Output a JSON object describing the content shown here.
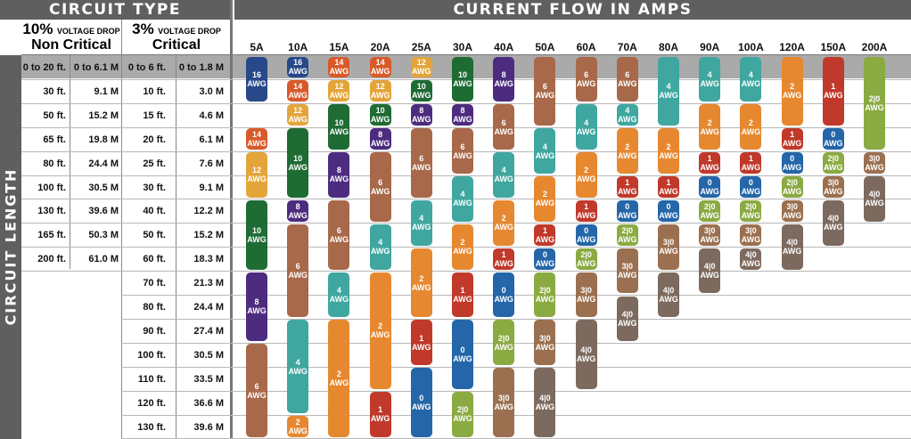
{
  "header": {
    "circuit_type": "CIRCUIT TYPE",
    "current_flow": "CURRENT FLOW IN AMPS",
    "circuit_length": "CIRCUIT LENGTH"
  },
  "drop_noncritical": {
    "percent": "10%",
    "caption": "VOLTAGE DROP",
    "label": "Non Critical"
  },
  "drop_critical": {
    "percent": "3%",
    "caption": "VOLTAGE DROP",
    "label": "Critical"
  },
  "amps": [
    "5A",
    "10A",
    "15A",
    "20A",
    "25A",
    "30A",
    "40A",
    "50A",
    "60A",
    "70A",
    "80A",
    "90A",
    "100A",
    "120A",
    "150A",
    "200A"
  ],
  "noncritical_rows": [
    {
      "ft": "0 to 20 ft.",
      "m": "0 to 6.1 M"
    },
    {
      "ft": "30 ft.",
      "m": "9.1 M"
    },
    {
      "ft": "50 ft.",
      "m": "15.2 M"
    },
    {
      "ft": "65 ft.",
      "m": "19.8 M"
    },
    {
      "ft": "80 ft.",
      "m": "24.4 M"
    },
    {
      "ft": "100 ft.",
      "m": "30.5 M"
    },
    {
      "ft": "130 ft.",
      "m": "39.6 M"
    },
    {
      "ft": "165 ft.",
      "m": "50.3 M"
    },
    {
      "ft": "200 ft.",
      "m": "61.0 M"
    }
  ],
  "critical_rows": [
    {
      "ft": "0 to 6 ft.",
      "m": "0 to 1.8 M"
    },
    {
      "ft": "10 ft.",
      "m": "3.0 M"
    },
    {
      "ft": "15 ft.",
      "m": "4.6 M"
    },
    {
      "ft": "20 ft.",
      "m": "6.1 M"
    },
    {
      "ft": "25 ft.",
      "m": "7.6 M"
    },
    {
      "ft": "30 ft.",
      "m": "9.1 M"
    },
    {
      "ft": "40 ft.",
      "m": "12.2 M"
    },
    {
      "ft": "50 ft.",
      "m": "15.2 M"
    },
    {
      "ft": "60 ft.",
      "m": "18.3 M"
    },
    {
      "ft": "70 ft.",
      "m": "21.3 M"
    },
    {
      "ft": "80 ft.",
      "m": "24.4 M"
    },
    {
      "ft": "90 ft.",
      "m": "27.4 M"
    },
    {
      "ft": "100 ft.",
      "m": "30.5 M"
    },
    {
      "ft": "110 ft.",
      "m": "33.5 M"
    },
    {
      "ft": "120 ft.",
      "m": "36.6 M"
    },
    {
      "ft": "130 ft.",
      "m": "39.6 M"
    }
  ],
  "awg_unit": "AWG",
  "gauge_colors": {
    "16": "#27498a",
    "14": "#d85a2a",
    "12": "#e3a53a",
    "10": "#1f6b34",
    "8": "#4d2c7f",
    "6": "#a8684a",
    "4": "#3fa7a0",
    "2": "#e68830",
    "1": "#c0392b",
    "0": "#2466a8",
    "2|0": "#8aaa42",
    "3|0": "#9a7050",
    "4|0": "#7c6a5e"
  },
  "wire_chart": [
    {
      "amps": "5A",
      "segments": [
        {
          "gauge": "16",
          "rows": [
            0,
            1
          ]
        },
        {
          "gauge": "14",
          "rows": [
            3,
            3
          ]
        },
        {
          "gauge": "12",
          "rows": [
            4,
            5
          ]
        },
        {
          "gauge": "10",
          "rows": [
            6,
            8
          ]
        },
        {
          "gauge": "8",
          "rows": [
            9,
            11
          ]
        },
        {
          "gauge": "6",
          "rows": [
            12,
            15
          ]
        }
      ]
    },
    {
      "amps": "10A",
      "segments": [
        {
          "gauge": "16",
          "rows": [
            0,
            0
          ]
        },
        {
          "gauge": "14",
          "rows": [
            1,
            1
          ]
        },
        {
          "gauge": "12",
          "rows": [
            2,
            2
          ]
        },
        {
          "gauge": "10",
          "rows": [
            3,
            5
          ]
        },
        {
          "gauge": "8",
          "rows": [
            6,
            6
          ]
        },
        {
          "gauge": "6",
          "rows": [
            7,
            10
          ]
        },
        {
          "gauge": "4",
          "rows": [
            11,
            14
          ]
        },
        {
          "gauge": "2",
          "rows": [
            15,
            15
          ]
        }
      ]
    },
    {
      "amps": "15A",
      "segments": [
        {
          "gauge": "14",
          "rows": [
            0,
            0
          ]
        },
        {
          "gauge": "12",
          "rows": [
            1,
            1
          ]
        },
        {
          "gauge": "10",
          "rows": [
            2,
            3
          ]
        },
        {
          "gauge": "8",
          "rows": [
            4,
            5
          ]
        },
        {
          "gauge": "6",
          "rows": [
            6,
            8
          ]
        },
        {
          "gauge": "4",
          "rows": [
            9,
            10
          ]
        },
        {
          "gauge": "2",
          "rows": [
            11,
            15
          ]
        }
      ]
    },
    {
      "amps": "20A",
      "segments": [
        {
          "gauge": "14",
          "rows": [
            0,
            0
          ]
        },
        {
          "gauge": "12",
          "rows": [
            1,
            1
          ]
        },
        {
          "gauge": "10",
          "rows": [
            2,
            2
          ]
        },
        {
          "gauge": "8",
          "rows": [
            3,
            3
          ]
        },
        {
          "gauge": "6",
          "rows": [
            4,
            6
          ]
        },
        {
          "gauge": "4",
          "rows": [
            7,
            8
          ]
        },
        {
          "gauge": "2",
          "rows": [
            9,
            13
          ]
        },
        {
          "gauge": "1",
          "rows": [
            14,
            15
          ]
        }
      ]
    },
    {
      "amps": "25A",
      "segments": [
        {
          "gauge": "12",
          "rows": [
            0,
            0
          ]
        },
        {
          "gauge": "10",
          "rows": [
            1,
            1
          ]
        },
        {
          "gauge": "8",
          "rows": [
            2,
            2
          ]
        },
        {
          "gauge": "6",
          "rows": [
            3,
            5
          ]
        },
        {
          "gauge": "4",
          "rows": [
            6,
            7
          ]
        },
        {
          "gauge": "2",
          "rows": [
            8,
            10
          ]
        },
        {
          "gauge": "1",
          "rows": [
            11,
            12
          ]
        },
        {
          "gauge": "0",
          "rows": [
            13,
            15
          ]
        }
      ]
    },
    {
      "amps": "30A",
      "segments": [
        {
          "gauge": "10",
          "rows": [
            0,
            1
          ]
        },
        {
          "gauge": "8",
          "rows": [
            2,
            2
          ]
        },
        {
          "gauge": "6",
          "rows": [
            3,
            4
          ]
        },
        {
          "gauge": "4",
          "rows": [
            5,
            6
          ]
        },
        {
          "gauge": "2",
          "rows": [
            7,
            8
          ]
        },
        {
          "gauge": "1",
          "rows": [
            9,
            10
          ]
        },
        {
          "gauge": "0",
          "rows": [
            11,
            13
          ]
        },
        {
          "gauge": "2|0",
          "rows": [
            14,
            15
          ]
        }
      ]
    },
    {
      "amps": "40A",
      "segments": [
        {
          "gauge": "8",
          "rows": [
            0,
            1
          ]
        },
        {
          "gauge": "6",
          "rows": [
            2,
            3
          ]
        },
        {
          "gauge": "4",
          "rows": [
            4,
            5
          ]
        },
        {
          "gauge": "2",
          "rows": [
            6,
            7
          ]
        },
        {
          "gauge": "1",
          "rows": [
            8,
            8
          ]
        },
        {
          "gauge": "0",
          "rows": [
            9,
            10
          ]
        },
        {
          "gauge": "2|0",
          "rows": [
            11,
            12
          ]
        },
        {
          "gauge": "3|0",
          "rows": [
            13,
            15
          ]
        }
      ]
    },
    {
      "amps": "50A",
      "segments": [
        {
          "gauge": "6",
          "rows": [
            0,
            2
          ]
        },
        {
          "gauge": "4",
          "rows": [
            3,
            4
          ]
        },
        {
          "gauge": "2",
          "rows": [
            5,
            6
          ]
        },
        {
          "gauge": "1",
          "rows": [
            7,
            7
          ]
        },
        {
          "gauge": "0",
          "rows": [
            8,
            8
          ]
        },
        {
          "gauge": "2|0",
          "rows": [
            9,
            10
          ]
        },
        {
          "gauge": "3|0",
          "rows": [
            11,
            12
          ]
        },
        {
          "gauge": "4|0",
          "rows": [
            13,
            15
          ]
        }
      ]
    },
    {
      "amps": "60A",
      "segments": [
        {
          "gauge": "6",
          "rows": [
            0,
            1
          ]
        },
        {
          "gauge": "4",
          "rows": [
            2,
            3
          ]
        },
        {
          "gauge": "2",
          "rows": [
            4,
            5
          ]
        },
        {
          "gauge": "1",
          "rows": [
            6,
            6
          ]
        },
        {
          "gauge": "0",
          "rows": [
            7,
            7
          ]
        },
        {
          "gauge": "2|0",
          "rows": [
            8,
            8
          ]
        },
        {
          "gauge": "3|0",
          "rows": [
            9,
            10
          ]
        },
        {
          "gauge": "4|0",
          "rows": [
            11,
            13
          ]
        }
      ]
    },
    {
      "amps": "70A",
      "segments": [
        {
          "gauge": "6",
          "rows": [
            0,
            1
          ]
        },
        {
          "gauge": "4",
          "rows": [
            2,
            2
          ]
        },
        {
          "gauge": "2",
          "rows": [
            3,
            4
          ]
        },
        {
          "gauge": "1",
          "rows": [
            5,
            5
          ]
        },
        {
          "gauge": "0",
          "rows": [
            6,
            6
          ]
        },
        {
          "gauge": "2|0",
          "rows": [
            7,
            7
          ]
        },
        {
          "gauge": "3|0",
          "rows": [
            8,
            9
          ]
        },
        {
          "gauge": "4|0",
          "rows": [
            10,
            11
          ]
        }
      ]
    },
    {
      "amps": "80A",
      "segments": [
        {
          "gauge": "4",
          "rows": [
            0,
            2
          ]
        },
        {
          "gauge": "2",
          "rows": [
            3,
            4
          ]
        },
        {
          "gauge": "1",
          "rows": [
            5,
            5
          ]
        },
        {
          "gauge": "0",
          "rows": [
            6,
            6
          ]
        },
        {
          "gauge": "3|0",
          "rows": [
            7,
            8
          ]
        },
        {
          "gauge": "4|0",
          "rows": [
            9,
            10
          ]
        }
      ]
    },
    {
      "amps": "90A",
      "segments": [
        {
          "gauge": "4",
          "rows": [
            0,
            1
          ]
        },
        {
          "gauge": "2",
          "rows": [
            2,
            3
          ]
        },
        {
          "gauge": "1",
          "rows": [
            4,
            4
          ]
        },
        {
          "gauge": "0",
          "rows": [
            5,
            5
          ]
        },
        {
          "gauge": "2|0",
          "rows": [
            6,
            6
          ]
        },
        {
          "gauge": "3|0",
          "rows": [
            7,
            7
          ]
        },
        {
          "gauge": "4|0",
          "rows": [
            8,
            9
          ]
        }
      ]
    },
    {
      "amps": "100A",
      "segments": [
        {
          "gauge": "4",
          "rows": [
            0,
            1
          ]
        },
        {
          "gauge": "2",
          "rows": [
            2,
            3
          ]
        },
        {
          "gauge": "1",
          "rows": [
            4,
            4
          ]
        },
        {
          "gauge": "0",
          "rows": [
            5,
            5
          ]
        },
        {
          "gauge": "2|0",
          "rows": [
            6,
            6
          ]
        },
        {
          "gauge": "3|0",
          "rows": [
            7,
            7
          ]
        },
        {
          "gauge": "4|0",
          "rows": [
            8,
            8
          ]
        }
      ]
    },
    {
      "amps": "120A",
      "segments": [
        {
          "gauge": "2",
          "rows": [
            0,
            2
          ]
        },
        {
          "gauge": "1",
          "rows": [
            3,
            3
          ]
        },
        {
          "gauge": "0",
          "rows": [
            4,
            4
          ]
        },
        {
          "gauge": "2|0",
          "rows": [
            5,
            5
          ]
        },
        {
          "gauge": "3|0",
          "rows": [
            6,
            6
          ]
        },
        {
          "gauge": "4|0",
          "rows": [
            7,
            8
          ]
        }
      ]
    },
    {
      "amps": "150A",
      "segments": [
        {
          "gauge": "1",
          "rows": [
            0,
            2
          ]
        },
        {
          "gauge": "0",
          "rows": [
            3,
            3
          ]
        },
        {
          "gauge": "2|0",
          "rows": [
            4,
            4
          ]
        },
        {
          "gauge": "3|0",
          "rows": [
            5,
            5
          ]
        },
        {
          "gauge": "4|0",
          "rows": [
            6,
            7
          ]
        }
      ]
    },
    {
      "amps": "200A",
      "segments": [
        {
          "gauge": "2|0",
          "rows": [
            0,
            3
          ]
        },
        {
          "gauge": "3|0",
          "rows": [
            4,
            4
          ]
        },
        {
          "gauge": "4|0",
          "rows": [
            5,
            6
          ]
        }
      ]
    }
  ]
}
